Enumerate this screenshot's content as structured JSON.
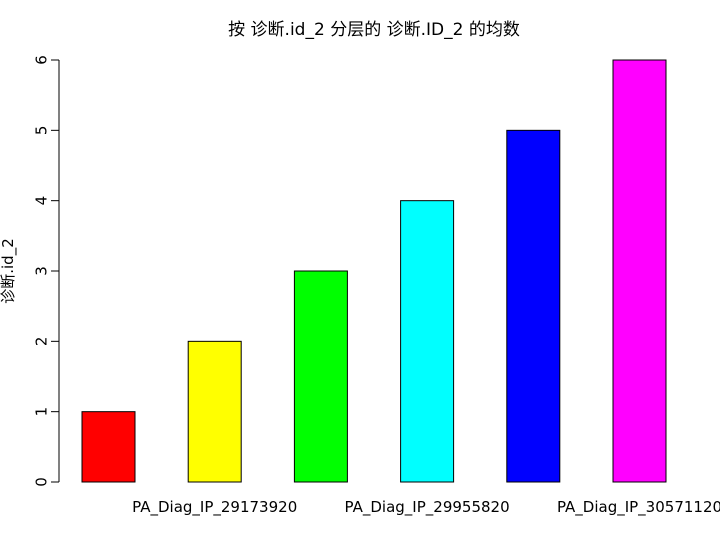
{
  "chart_data": {
    "type": "bar",
    "title": "按 诊断.id_2 分层的 诊断.ID_2 的均数",
    "xlabel": "",
    "ylabel": "诊断.id_2",
    "ylim": [
      0,
      6
    ],
    "yticks": [
      0,
      1,
      2,
      3,
      4,
      5,
      6
    ],
    "categories": [
      "",
      "PA_Diag_IP_29173920",
      "",
      "PA_Diag_IP_29955820",
      "",
      "PA_Diag_IP_30571120"
    ],
    "values": [
      1,
      2,
      3,
      4,
      5,
      6
    ],
    "colors": [
      "#ff0000",
      "#ffff00",
      "#00ff00",
      "#00ffff",
      "#0000ff",
      "#ff00ff"
    ],
    "grid": false,
    "legend": "none"
  }
}
